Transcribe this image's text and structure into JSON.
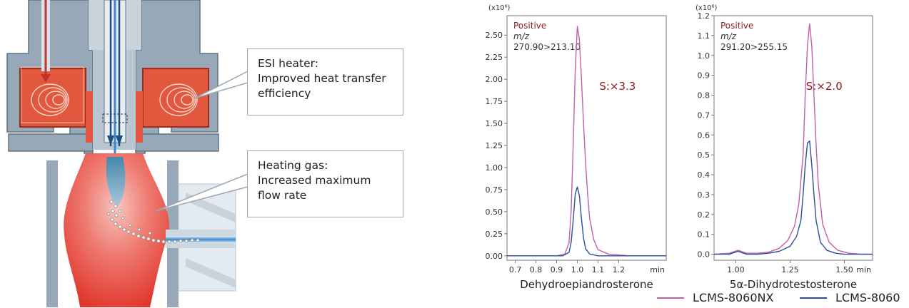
{
  "callouts": {
    "esi": [
      "ESI heater:",
      "Improved heat transfer",
      "efficiency"
    ],
    "gas": [
      "Heating gas:",
      "Increased maximum",
      "flow rate"
    ]
  },
  "colors": {
    "pink": "#c060a8",
    "blue": "#2a4f9e",
    "annotation": "#8b1a1a",
    "heater": "#e2583e",
    "body": "#97a9b8"
  },
  "legend": [
    {
      "name": "LCMS-8060NX",
      "color": "#c060a8"
    },
    {
      "name": "LCMS-8060",
      "color": "#2a4f9e"
    }
  ],
  "chart_data": [
    {
      "type": "line",
      "xlabel": "Dehydroepiandrosterone",
      "y_multiplier": "(x10⁶)",
      "x_unit": "min",
      "polarity": "Positive",
      "mz_label": "m/z",
      "transition": "270.90>213.10",
      "scale_note": "S:×3.3",
      "xlim": [
        0.66,
        1.43
      ],
      "ylim": [
        -0.05,
        2.72
      ],
      "xticks": [
        "0.7",
        "0.8",
        "0.9",
        "1.0",
        "1.1",
        "1.2"
      ],
      "yticks": [
        "0.00",
        "0.25",
        "0.50",
        "0.75",
        "1.00",
        "1.25",
        "1.50",
        "1.75",
        "2.00",
        "2.25",
        "2.50"
      ],
      "series": [
        {
          "name": "LCMS-8060NX",
          "color": "#c060a8",
          "x": [
            0.66,
            0.9,
            0.94,
            0.96,
            0.97,
            0.98,
            0.99,
            1.0,
            1.01,
            1.02,
            1.03,
            1.04,
            1.05,
            1.06,
            1.08,
            1.1,
            1.15,
            1.2,
            1.25,
            1.43
          ],
          "y": [
            0.0,
            0.0,
            0.02,
            0.15,
            0.5,
            1.25,
            2.1,
            2.6,
            2.45,
            2.0,
            1.5,
            1.05,
            0.7,
            0.42,
            0.18,
            0.07,
            0.02,
            0.01,
            0.0,
            0.0
          ]
        },
        {
          "name": "LCMS-8060",
          "color": "#2a4f9e",
          "x": [
            0.66,
            0.93,
            0.96,
            0.97,
            0.98,
            0.99,
            1.0,
            1.01,
            1.02,
            1.03,
            1.04,
            1.06,
            1.1,
            1.43
          ],
          "y": [
            0.0,
            0.0,
            0.04,
            0.15,
            0.4,
            0.7,
            0.78,
            0.68,
            0.42,
            0.2,
            0.08,
            0.02,
            0.0,
            0.0
          ]
        }
      ]
    },
    {
      "type": "line",
      "xlabel": "5α-Dihydrotestosterone",
      "y_multiplier": "(x10⁶)",
      "x_unit": "min",
      "polarity": "Positive",
      "mz_label": "m/z",
      "transition": "291.20>255.15",
      "scale_note": "S:×2.0",
      "xlim": [
        0.9,
        1.63
      ],
      "ylim": [
        -0.03,
        1.2
      ],
      "xticks": [
        "1.00",
        "1.25",
        "1.50"
      ],
      "yticks": [
        "0.0",
        "0.1",
        "0.2",
        "0.3",
        "0.4",
        "0.5",
        "0.6",
        "0.7",
        "0.8",
        "0.9",
        "1.0",
        "1.1",
        "1.2"
      ],
      "series": [
        {
          "name": "LCMS-8060NX",
          "color": "#c060a8",
          "x": [
            0.9,
            0.97,
            1.01,
            1.05,
            1.1,
            1.15,
            1.2,
            1.24,
            1.27,
            1.29,
            1.31,
            1.32,
            1.33,
            1.34,
            1.35,
            1.36,
            1.37,
            1.38,
            1.4,
            1.43,
            1.47,
            1.52,
            1.58,
            1.63
          ],
          "y": [
            0.0,
            0.005,
            0.02,
            0.005,
            0.005,
            0.01,
            0.03,
            0.07,
            0.14,
            0.25,
            0.5,
            0.8,
            1.05,
            1.16,
            1.05,
            0.8,
            0.55,
            0.35,
            0.15,
            0.06,
            0.02,
            0.005,
            0.0,
            0.0
          ]
        },
        {
          "name": "LCMS-8060",
          "color": "#2a4f9e",
          "x": [
            0.9,
            0.97,
            1.01,
            1.05,
            1.1,
            1.15,
            1.2,
            1.25,
            1.28,
            1.3,
            1.31,
            1.32,
            1.33,
            1.34,
            1.35,
            1.36,
            1.37,
            1.39,
            1.42,
            1.46,
            1.5,
            1.63
          ],
          "y": [
            0.0,
            0.0,
            0.015,
            0.0,
            0.0,
            0.005,
            0.015,
            0.04,
            0.09,
            0.17,
            0.3,
            0.45,
            0.56,
            0.57,
            0.45,
            0.3,
            0.17,
            0.06,
            0.02,
            0.005,
            0.0,
            0.0
          ]
        }
      ]
    }
  ]
}
